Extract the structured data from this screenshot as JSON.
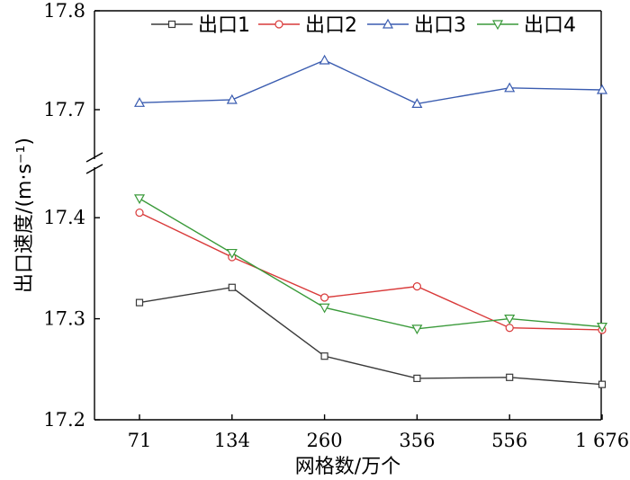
{
  "chart_data": {
    "type": "line",
    "xlabel": "网格数/万个",
    "ylabel": "出口速度/(m·s⁻¹)",
    "categories": [
      "71",
      "134",
      "260",
      "356",
      "556",
      "1 676"
    ],
    "y_ticks": [
      "17.2",
      "17.3",
      "17.4",
      "17.7",
      "17.8"
    ],
    "ylim_lower": [
      17.2,
      17.45
    ],
    "ylim_upper": [
      17.65,
      17.8
    ],
    "axis_break": true,
    "legend_position": "top",
    "series": [
      {
        "name": "出口1",
        "color": "#3a3a3a",
        "marker": "square",
        "values": [
          17.316,
          17.331,
          17.263,
          17.241,
          17.242,
          17.235
        ]
      },
      {
        "name": "出口2",
        "color": "#d93a3a",
        "marker": "circle",
        "values": [
          17.405,
          17.361,
          17.321,
          17.332,
          17.291,
          17.289
        ]
      },
      {
        "name": "出口3",
        "color": "#3a5cb0",
        "marker": "triangle-up",
        "values": [
          17.707,
          17.71,
          17.75,
          17.706,
          17.722,
          17.72
        ]
      },
      {
        "name": "出口4",
        "color": "#3a9a3a",
        "marker": "triangle-down",
        "values": [
          17.419,
          17.365,
          17.311,
          17.29,
          17.3,
          17.292
        ]
      }
    ]
  }
}
